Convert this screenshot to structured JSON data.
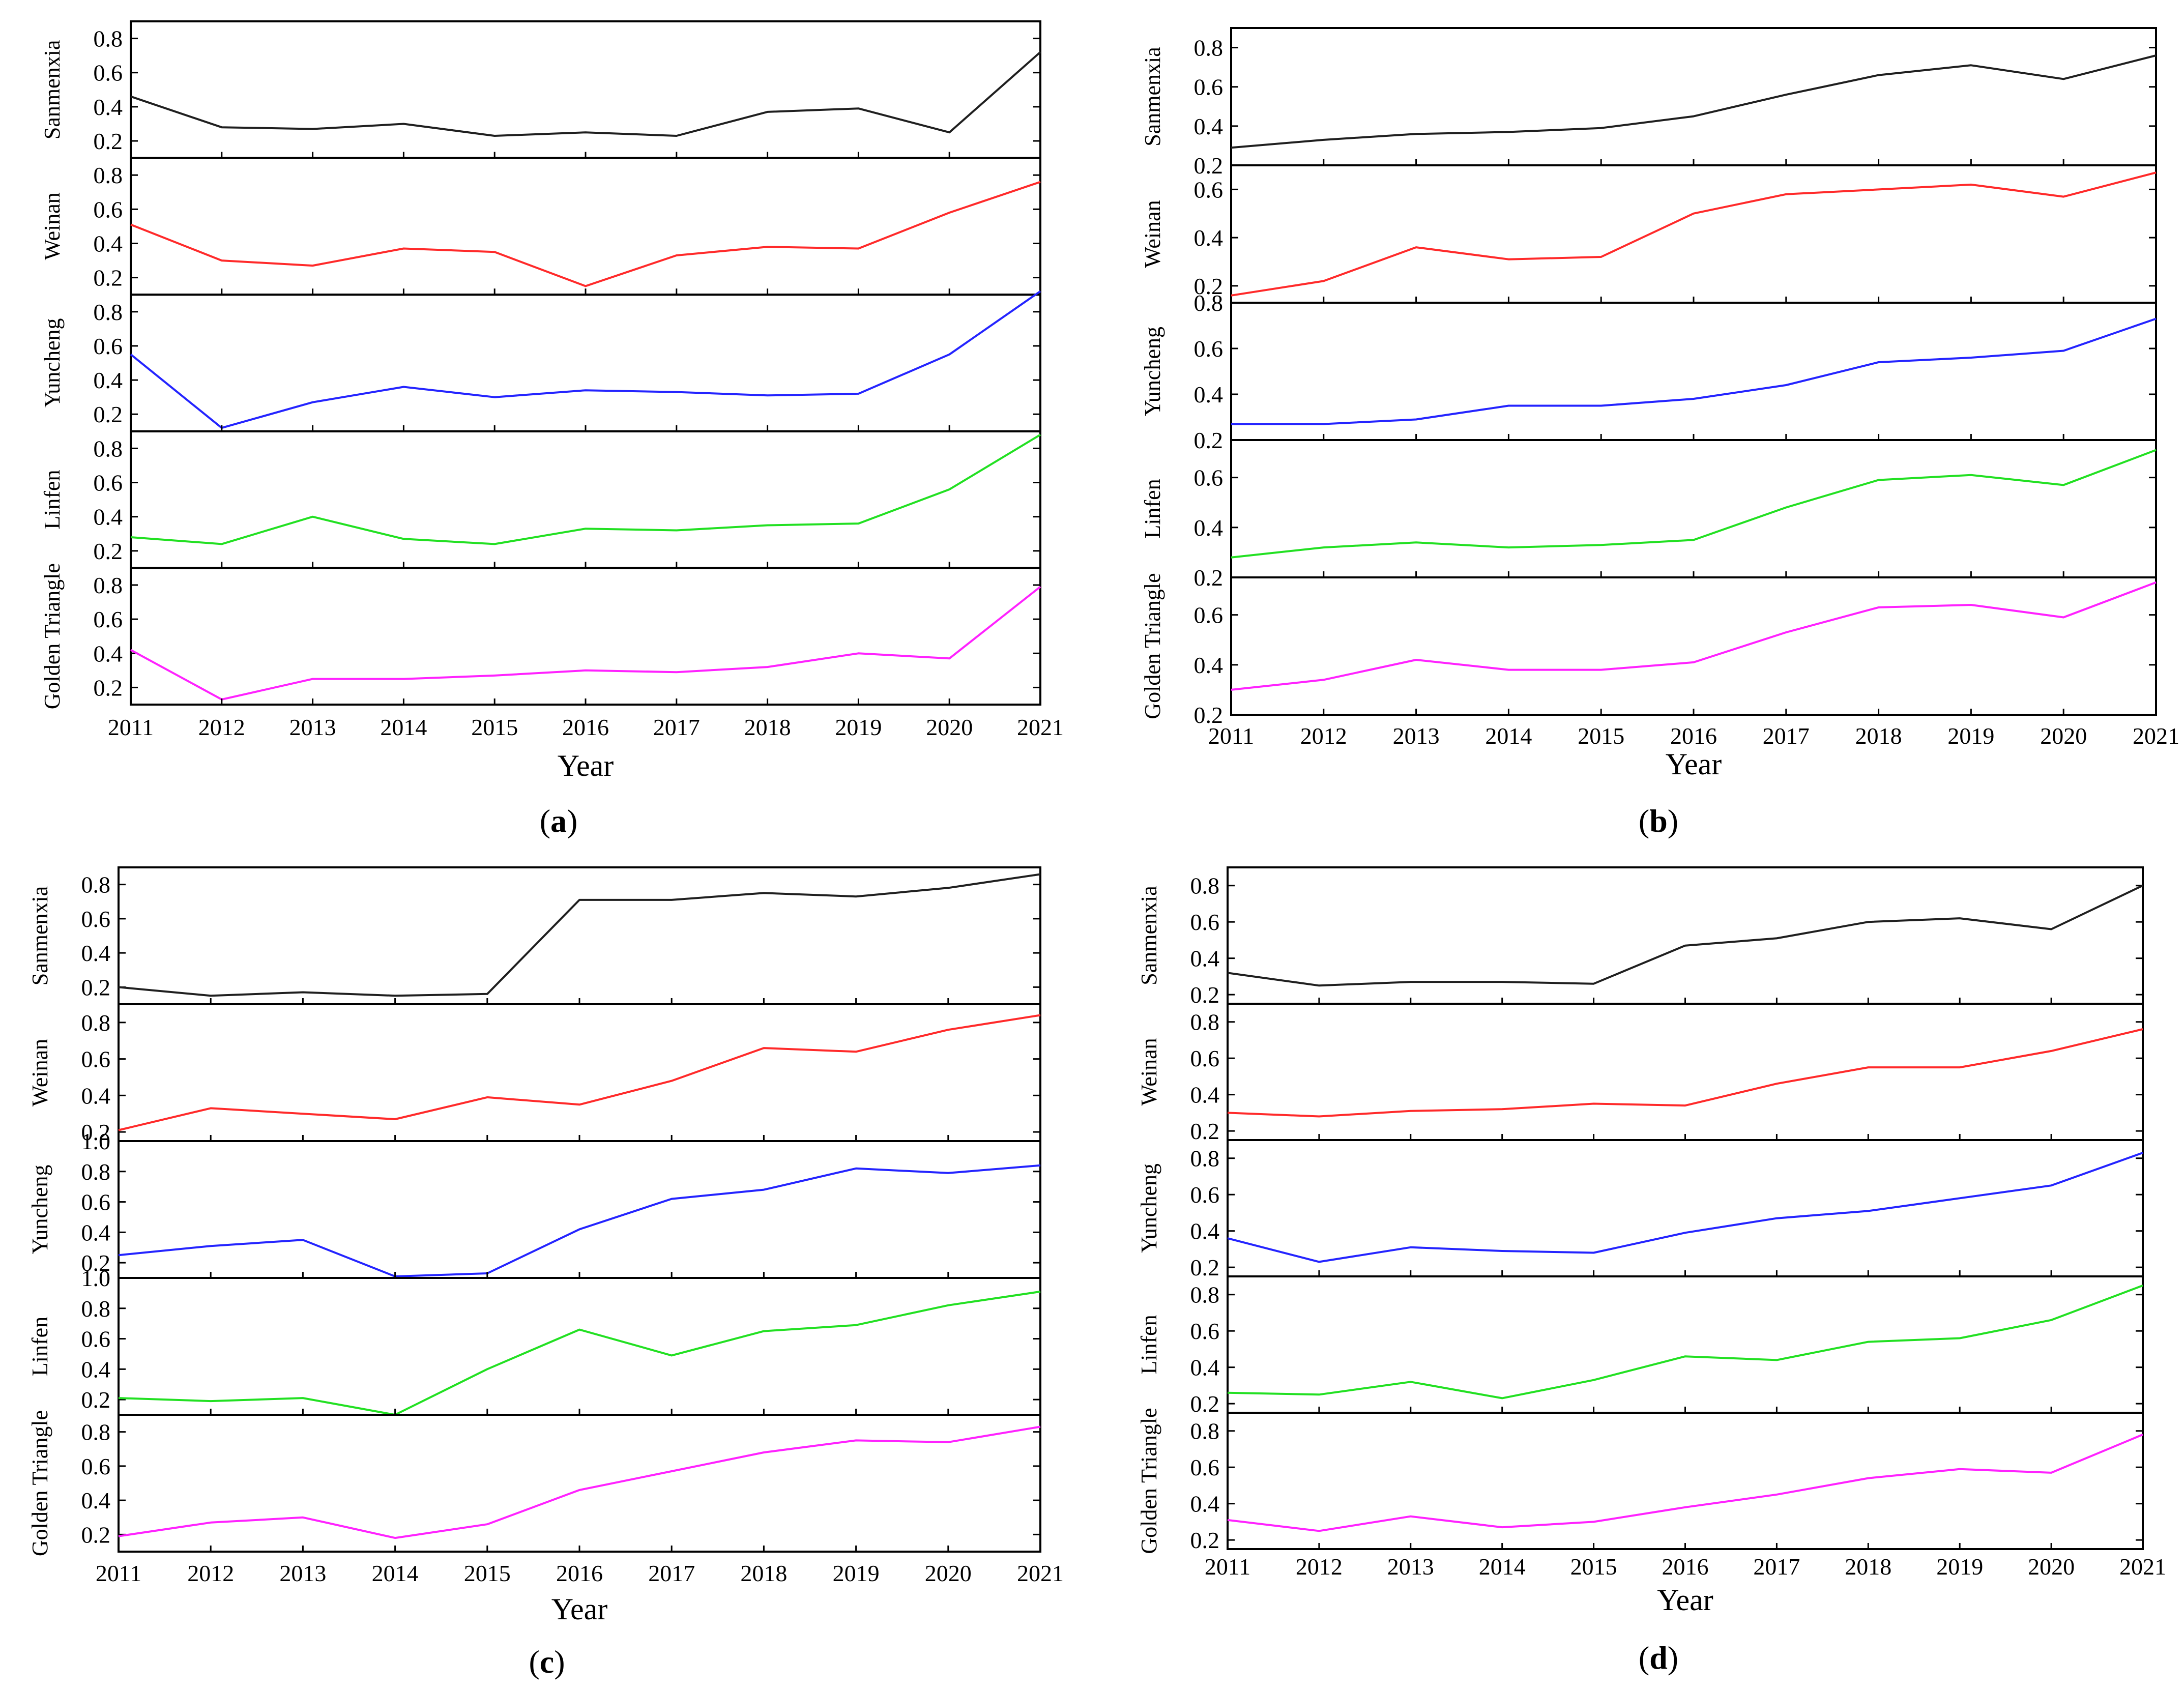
{
  "figure": {
    "x_label": "Year",
    "years": [
      2011,
      2012,
      2013,
      2014,
      2015,
      2016,
      2017,
      2018,
      2019,
      2020,
      2021
    ],
    "series_colors": {
      "Sanmenxia": "#1f1f1f",
      "Weinan": "#ff2a2a",
      "Yuncheng": "#2424ff",
      "Linfen": "#22e022",
      "Golden Triangle": "#ff22ff"
    }
  },
  "chart_data": [
    {
      "type": "line",
      "panel": "a",
      "caption_open": "(",
      "caption_letter": "a",
      "caption_close": ")",
      "xlabel": "Year",
      "x": [
        2011,
        2012,
        2013,
        2014,
        2015,
        2016,
        2017,
        2018,
        2019,
        2020,
        2021
      ],
      "subplots": [
        {
          "name": "Sanmenxia",
          "ylim": [
            0.1,
            0.9
          ],
          "ticks": [
            "0.2",
            "0.4",
            "0.6",
            "0.8"
          ],
          "values": [
            0.46,
            0.28,
            0.27,
            0.3,
            0.23,
            0.25,
            0.23,
            0.37,
            0.39,
            0.25,
            0.72
          ]
        },
        {
          "name": "Weinan",
          "ylim": [
            0.1,
            0.9
          ],
          "ticks": [
            "0.2",
            "0.4",
            "0.6",
            "0.8"
          ],
          "values": [
            0.51,
            0.3,
            0.27,
            0.37,
            0.35,
            0.15,
            0.33,
            0.38,
            0.37,
            0.58,
            0.76
          ]
        },
        {
          "name": "Yuncheng",
          "ylim": [
            0.1,
            0.9
          ],
          "ticks": [
            "0.2",
            "0.4",
            "0.6",
            "0.8"
          ],
          "values": [
            0.55,
            0.12,
            0.27,
            0.36,
            0.3,
            0.34,
            0.33,
            0.31,
            0.32,
            0.55,
            0.92
          ]
        },
        {
          "name": "Linfen",
          "ylim": [
            0.1,
            0.9
          ],
          "ticks": [
            "0.2",
            "0.4",
            "0.6",
            "0.8"
          ],
          "values": [
            0.28,
            0.24,
            0.4,
            0.27,
            0.24,
            0.33,
            0.32,
            0.35,
            0.36,
            0.56,
            0.88
          ]
        },
        {
          "name": "Golden Triangle",
          "ylim": [
            0.1,
            0.9
          ],
          "ticks": [
            "0.2",
            "0.4",
            "0.6",
            "0.8"
          ],
          "values": [
            0.42,
            0.13,
            0.25,
            0.25,
            0.27,
            0.3,
            0.29,
            0.32,
            0.4,
            0.37,
            0.79
          ]
        }
      ]
    },
    {
      "type": "line",
      "panel": "b",
      "caption_open": "(",
      "caption_letter": "b",
      "caption_close": ")",
      "xlabel": "Year",
      "x": [
        2011,
        2012,
        2013,
        2014,
        2015,
        2016,
        2017,
        2018,
        2019,
        2020,
        2021
      ],
      "subplots": [
        {
          "name": "Sanmenxia",
          "ylim": [
            0.2,
            0.9
          ],
          "ticks": [
            "0.2",
            "0.4",
            "0.6",
            "0.8"
          ],
          "values": [
            0.29,
            0.33,
            0.36,
            0.37,
            0.39,
            0.45,
            0.56,
            0.66,
            0.71,
            0.64,
            0.76
          ]
        },
        {
          "name": "Weinan",
          "ylim": [
            0.13,
            0.7
          ],
          "ticks": [
            "0.2",
            "0.4",
            "0.6"
          ],
          "values": [
            0.16,
            0.22,
            0.36,
            0.31,
            0.32,
            0.5,
            0.58,
            0.6,
            0.62,
            0.57,
            0.67
          ]
        },
        {
          "name": "Yuncheng",
          "ylim": [
            0.2,
            0.8
          ],
          "ticks": [
            "0.2",
            "0.4",
            "0.6",
            "0.8"
          ],
          "values": [
            0.27,
            0.27,
            0.29,
            0.35,
            0.35,
            0.38,
            0.44,
            0.54,
            0.56,
            0.59,
            0.73
          ]
        },
        {
          "name": "Linfen",
          "ylim": [
            0.2,
            0.75
          ],
          "ticks": [
            "0.2",
            "0.4",
            "0.6"
          ],
          "values": [
            0.28,
            0.32,
            0.34,
            0.32,
            0.33,
            0.35,
            0.48,
            0.59,
            0.61,
            0.57,
            0.71
          ]
        },
        {
          "name": "Golden Triangle",
          "ylim": [
            0.2,
            0.75
          ],
          "ticks": [
            "0.2",
            "0.4",
            "0.6"
          ],
          "values": [
            0.3,
            0.34,
            0.42,
            0.38,
            0.38,
            0.41,
            0.53,
            0.63,
            0.64,
            0.59,
            0.73
          ]
        }
      ]
    },
    {
      "type": "line",
      "panel": "c",
      "caption_open": "(",
      "caption_letter": "c",
      "caption_close": ")",
      "xlabel": "Year",
      "x": [
        2011,
        2012,
        2013,
        2014,
        2015,
        2016,
        2017,
        2018,
        2019,
        2020,
        2021
      ],
      "subplots": [
        {
          "name": "Sanmenxia",
          "ylim": [
            0.1,
            0.9
          ],
          "ticks": [
            "0.2",
            "0.4",
            "0.6",
            "0.8"
          ],
          "values": [
            0.2,
            0.15,
            0.17,
            0.15,
            0.16,
            0.71,
            0.71,
            0.75,
            0.73,
            0.78,
            0.86
          ]
        },
        {
          "name": "Weinan",
          "ylim": [
            0.15,
            0.9
          ],
          "ticks": [
            "0.2",
            "0.4",
            "0.6",
            "0.8"
          ],
          "values": [
            0.21,
            0.33,
            0.3,
            0.27,
            0.39,
            0.35,
            0.48,
            0.66,
            0.64,
            0.76,
            0.84
          ]
        },
        {
          "name": "Yuncheng",
          "ylim": [
            0.1,
            1.0
          ],
          "ticks": [
            "0.2",
            "0.4",
            "0.6",
            "0.8",
            "1.0"
          ],
          "values": [
            0.25,
            0.31,
            0.35,
            0.11,
            0.13,
            0.42,
            0.62,
            0.68,
            0.82,
            0.79,
            0.84
          ]
        },
        {
          "name": "Linfen",
          "ylim": [
            0.1,
            1.0
          ],
          "ticks": [
            "0.2",
            "0.4",
            "0.6",
            "0.8",
            "1.0"
          ],
          "values": [
            0.21,
            0.19,
            0.21,
            0.1,
            0.4,
            0.66,
            0.49,
            0.65,
            0.69,
            0.82,
            0.91
          ]
        },
        {
          "name": "Golden Triangle",
          "ylim": [
            0.1,
            0.9
          ],
          "ticks": [
            "0.2",
            "0.4",
            "0.6",
            "0.8"
          ],
          "values": [
            0.19,
            0.27,
            0.3,
            0.18,
            0.26,
            0.46,
            0.57,
            0.68,
            0.75,
            0.74,
            0.83
          ]
        }
      ]
    },
    {
      "type": "line",
      "panel": "d",
      "caption_open": "(",
      "caption_letter": "d",
      "caption_close": ")",
      "xlabel": "Year",
      "x": [
        2011,
        2012,
        2013,
        2014,
        2015,
        2016,
        2017,
        2018,
        2019,
        2020,
        2021
      ],
      "subplots": [
        {
          "name": "Sanmenxia",
          "ylim": [
            0.15,
            0.9
          ],
          "ticks": [
            "0.2",
            "0.4",
            "0.6",
            "0.8"
          ],
          "values": [
            0.32,
            0.25,
            0.27,
            0.27,
            0.26,
            0.47,
            0.51,
            0.6,
            0.62,
            0.56,
            0.8
          ]
        },
        {
          "name": "Weinan",
          "ylim": [
            0.15,
            0.9
          ],
          "ticks": [
            "0.2",
            "0.4",
            "0.6",
            "0.8"
          ],
          "values": [
            0.3,
            0.28,
            0.31,
            0.32,
            0.35,
            0.34,
            0.46,
            0.55,
            0.55,
            0.64,
            0.76
          ]
        },
        {
          "name": "Yuncheng",
          "ylim": [
            0.15,
            0.9
          ],
          "ticks": [
            "0.2",
            "0.4",
            "0.6",
            "0.8"
          ],
          "values": [
            0.36,
            0.23,
            0.31,
            0.29,
            0.28,
            0.39,
            0.47,
            0.51,
            0.58,
            0.65,
            0.83
          ]
        },
        {
          "name": "Linfen",
          "ylim": [
            0.15,
            0.9
          ],
          "ticks": [
            "0.2",
            "0.4",
            "0.6",
            "0.8"
          ],
          "values": [
            0.26,
            0.25,
            0.32,
            0.23,
            0.33,
            0.46,
            0.44,
            0.54,
            0.56,
            0.66,
            0.85
          ]
        },
        {
          "name": "Golden Triangle",
          "ylim": [
            0.15,
            0.9
          ],
          "ticks": [
            "0.2",
            "0.4",
            "0.6",
            "0.8"
          ],
          "values": [
            0.31,
            0.25,
            0.33,
            0.27,
            0.3,
            0.38,
            0.45,
            0.54,
            0.59,
            0.57,
            0.78
          ]
        }
      ]
    }
  ]
}
